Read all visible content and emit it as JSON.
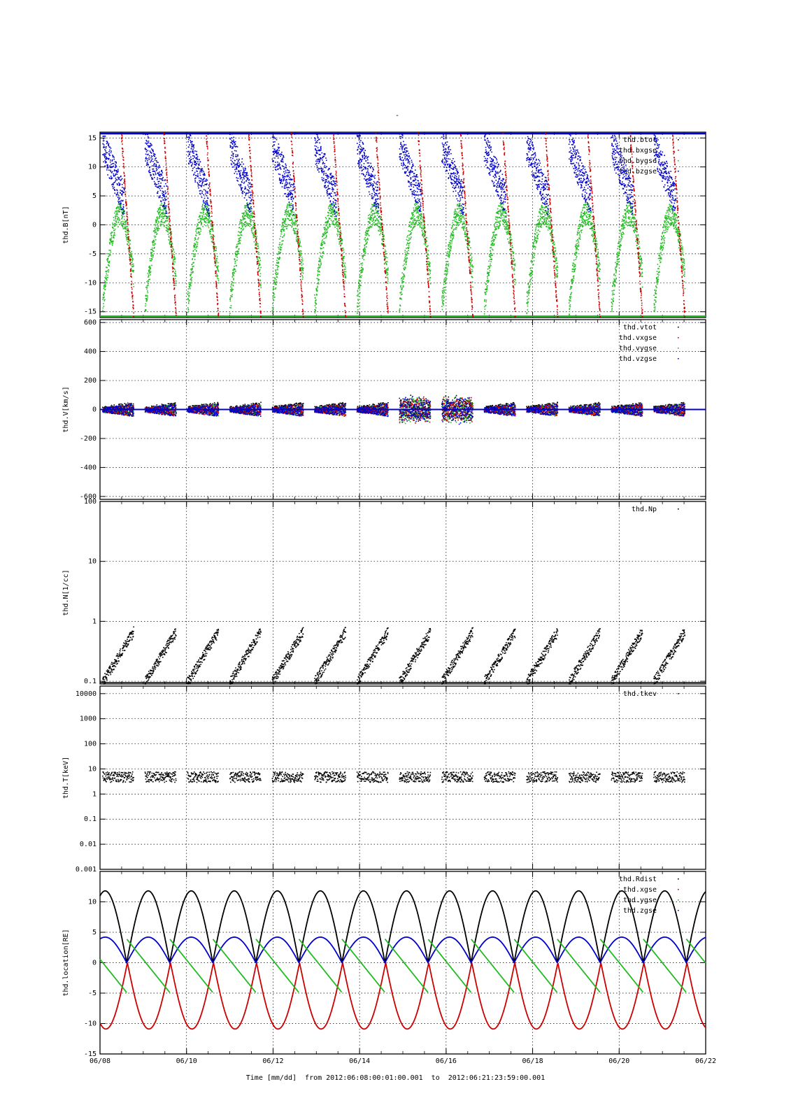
{
  "header": {
    "title": "-"
  },
  "footer": {
    "time_label": "Time [mm/dd]  from 2012:06:08:00:01:00.001  to  2012:06:21:23:59:00.001"
  },
  "colors": {
    "black": "#000000",
    "red": "#cc0000",
    "green": "#22bb22",
    "blue": "#0000cc",
    "grid": "#000000"
  },
  "chart_data": [
    {
      "type": "scatter",
      "ylabel": "thd.B[nT]",
      "ylim": [
        -16,
        16
      ],
      "ticks": [
        -15,
        -10,
        -5,
        0,
        5,
        10,
        15
      ],
      "legend_placement": "top-right",
      "series": [
        {
          "name": "thd.btot",
          "color": "#000000"
        },
        {
          "name": "thd.bxgse",
          "color": "#cc0000"
        },
        {
          "name": "thd.bygse",
          "color": "#22bb22"
        },
        {
          "name": "thd.bzgse",
          "color": "#0000cc"
        }
      ]
    },
    {
      "type": "scatter",
      "ylabel": "thd.V[km/s]",
      "ylim": [
        -620,
        620
      ],
      "ticks": [
        -600,
        -400,
        -200,
        0,
        200,
        400,
        600
      ],
      "legend_placement": "top-right",
      "series": [
        {
          "name": "thd.vtot",
          "color": "#000000"
        },
        {
          "name": "thd.vxgse",
          "color": "#cc0000"
        },
        {
          "name": "thd.vygse",
          "color": "#22bb22"
        },
        {
          "name": "thd.vzgse",
          "color": "#0000cc"
        }
      ]
    },
    {
      "type": "scatter",
      "ylabel": "thd.N[1/cc]",
      "log_scale": true,
      "ylim": [
        0.09,
        100
      ],
      "ticks": [
        0.1,
        1,
        10,
        100
      ],
      "legend_placement": "top-right",
      "series": [
        {
          "name": "thd.Np",
          "color": "#000000"
        }
      ]
    },
    {
      "type": "scatter",
      "ylabel": "thd.T[keV]",
      "log_scale": true,
      "ylim": [
        0.001,
        20000
      ],
      "ticks": [
        0.001,
        0.01,
        0.1,
        1,
        10,
        100,
        1000,
        10000
      ],
      "tick_labels": [
        "0.001",
        "0.01",
        "0.1",
        "1",
        "10",
        "100",
        "1000",
        "10000"
      ],
      "legend_placement": "top-right",
      "series": [
        {
          "name": "thd.tkev",
          "color": "#000000"
        }
      ]
    },
    {
      "type": "line",
      "ylabel": "thd.location[RE]",
      "ylim": [
        -15,
        15
      ],
      "ticks": [
        -15,
        -10,
        -5,
        0,
        5,
        10
      ],
      "legend_placement": "top-right",
      "x_ticks": [
        "06/08",
        "06/10",
        "06/12",
        "06/14",
        "06/16",
        "06/18",
        "06/20",
        "06/22"
      ],
      "series": [
        {
          "name": "thd.Rdist",
          "color": "#000000",
          "description": "0 to 11.8, orbit ~0.99 day"
        },
        {
          "name": "thd.xgse",
          "color": "#cc0000",
          "description": "0 to -10.9"
        },
        {
          "name": "thd.ygse",
          "color": "#22bb22",
          "description": "-4.9 to 3.9"
        },
        {
          "name": "thd.zgse",
          "color": "#0000cc",
          "description": "0 to 4.2"
        }
      ]
    }
  ],
  "x_axis": {
    "start": "2012-06-08",
    "end": "2012-06-22",
    "tick_labels": [
      "06/08",
      "06/10",
      "06/12",
      "06/14",
      "06/16",
      "06/18",
      "06/20",
      "06/22"
    ],
    "grid": true
  }
}
